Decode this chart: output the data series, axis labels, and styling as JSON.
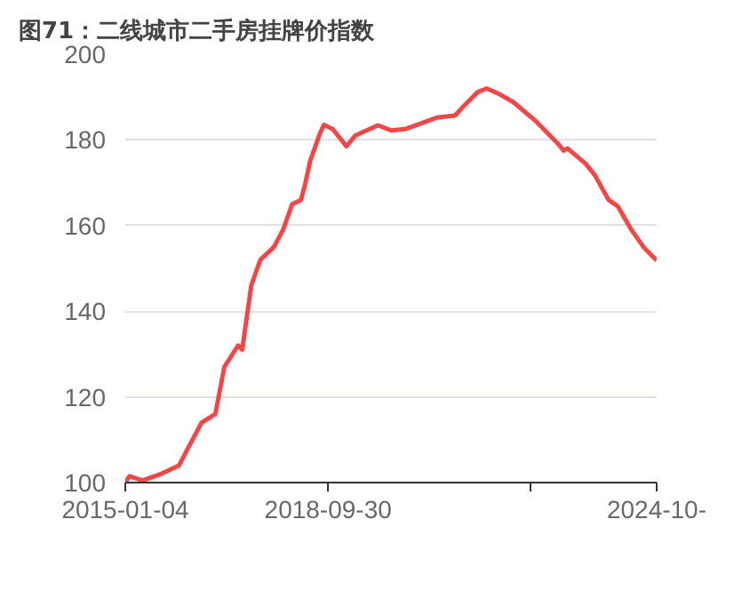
{
  "chart_data": {
    "type": "line",
    "title": "图71：二线城市二手房挂牌价指数",
    "x": [
      "2015-01-04",
      "2015-02-01",
      "2015-05-01",
      "2015-09-01",
      "2016-01-01",
      "2016-03-01",
      "2016-06-01",
      "2016-09-01",
      "2016-11-01",
      "2017-02-01",
      "2017-03-01",
      "2017-05-01",
      "2017-07-01",
      "2017-10-01",
      "2017-12-01",
      "2018-02-01",
      "2018-04-01",
      "2018-05-01",
      "2018-06-01",
      "2018-08-01",
      "2018-09-01",
      "2018-11-01",
      "2019-02-01",
      "2019-04-01",
      "2019-09-01",
      "2019-12-01",
      "2020-03-01",
      "2020-10-01",
      "2021-02-01",
      "2021-04-01",
      "2021-07-01",
      "2021-09-01",
      "2021-12-01",
      "2022-03-01",
      "2022-06-01",
      "2022-08-01",
      "2023-01-01",
      "2023-02-01",
      "2023-03-01",
      "2023-07-01",
      "2023-09-01",
      "2023-12-01",
      "2024-02-01",
      "2024-05-01",
      "2024-08-01",
      "2024-10-20"
    ],
    "series": [
      {
        "color": "#f04848",
        "values": [
          100,
          101.5,
          100.5,
          102,
          104,
          108,
          114,
          116,
          127,
          132,
          131,
          146,
          152,
          155,
          159,
          165,
          166,
          170,
          175,
          181,
          183.5,
          182.5,
          178.5,
          181,
          183.4,
          182.2,
          182.5,
          185.2,
          185.7,
          187.9,
          191.1,
          192,
          190.6,
          188.8,
          186.1,
          184.3,
          178.9,
          177.5,
          178,
          174.4,
          171.7,
          166,
          164.5,
          159.1,
          154.6,
          151.9
        ]
      }
    ],
    "xlim": [
      "2015-01-04",
      "2024-10-20"
    ],
    "xticks": [
      {
        "value": "2015-01-04",
        "label": "2015-01-04"
      },
      {
        "value": "2018-09-30",
        "label": "2018-09-30"
      },
      {
        "value": "2022-06-26",
        "label": null
      },
      {
        "value": "2024-10-20",
        "label": "2024-10-"
      }
    ],
    "ylim": [
      100,
      200
    ],
    "yticks": [
      100,
      120,
      140,
      160,
      180,
      200
    ],
    "grid": "y",
    "line_style": "solid"
  }
}
